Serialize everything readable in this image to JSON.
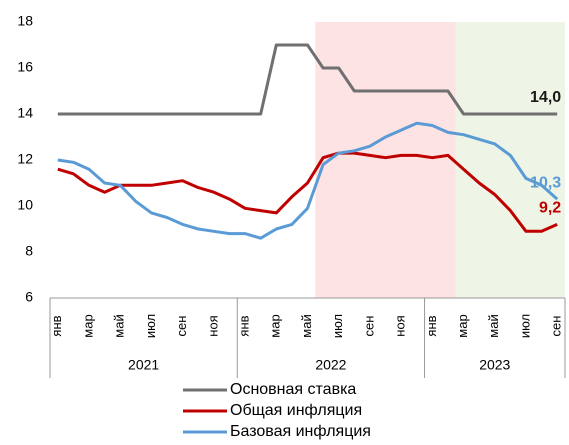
{
  "chart_data": {
    "type": "line",
    "categories": [
      "янв",
      null,
      "мар",
      null,
      "май",
      null,
      "июл",
      null,
      "сен",
      null,
      "ноя",
      null,
      "янв",
      null,
      "мар",
      null,
      "май",
      null,
      "июл",
      null,
      "сен",
      null,
      "ноя",
      null,
      "янв",
      null,
      "мар",
      null,
      "май",
      null,
      "июл",
      null,
      "сен"
    ],
    "groups": [
      {
        "label": "2021",
        "months": 12
      },
      {
        "label": "2022",
        "months": 12
      },
      {
        "label": "2023",
        "months": 9
      }
    ],
    "shaded_regions": [
      {
        "from": 17,
        "to": 26,
        "color": "#fde3e3"
      },
      {
        "from": 26,
        "to": 33,
        "color": "#eef5e6"
      }
    ],
    "ylim": [
      6,
      18
    ],
    "yticks": [
      6,
      8,
      10,
      12,
      14,
      16,
      18
    ],
    "grid": false,
    "series": [
      {
        "name": "Основная ставка",
        "color": "#707070",
        "end_label": "14,0",
        "end_label_color": "#1a1a1a",
        "values": [
          14,
          14,
          14,
          14,
          14,
          14,
          14,
          14,
          14,
          14,
          14,
          14,
          14,
          14,
          17,
          17,
          17,
          16,
          16,
          15,
          15,
          15,
          15,
          15,
          15,
          15,
          14,
          14,
          14,
          14,
          14,
          14,
          14
        ]
      },
      {
        "name": "Общая инфляция",
        "color": "#c00000",
        "end_label": "9,2",
        "end_label_color": "#c00000",
        "values": [
          11.6,
          11.4,
          10.9,
          10.6,
          10.9,
          10.9,
          10.9,
          11.0,
          11.1,
          10.8,
          10.6,
          10.3,
          9.9,
          9.8,
          9.7,
          10.4,
          11.0,
          12.1,
          12.3,
          12.3,
          12.2,
          12.1,
          12.2,
          12.2,
          12.1,
          12.2,
          11.6,
          11.0,
          10.5,
          9.8,
          8.9,
          8.9,
          9.2
        ]
      },
      {
        "name": "Базовая инфляция",
        "color": "#5b9bd5",
        "end_label": "10,3",
        "end_label_color": "#5b9bd5",
        "values": [
          12.0,
          11.9,
          11.6,
          11.0,
          10.9,
          10.2,
          9.7,
          9.5,
          9.2,
          9.0,
          8.9,
          8.8,
          8.8,
          8.6,
          9.0,
          9.2,
          9.9,
          11.8,
          12.3,
          12.4,
          12.6,
          13.0,
          13.3,
          13.6,
          13.5,
          13.2,
          13.1,
          12.9,
          12.7,
          12.2,
          11.2,
          10.9,
          10.3
        ]
      }
    ]
  }
}
